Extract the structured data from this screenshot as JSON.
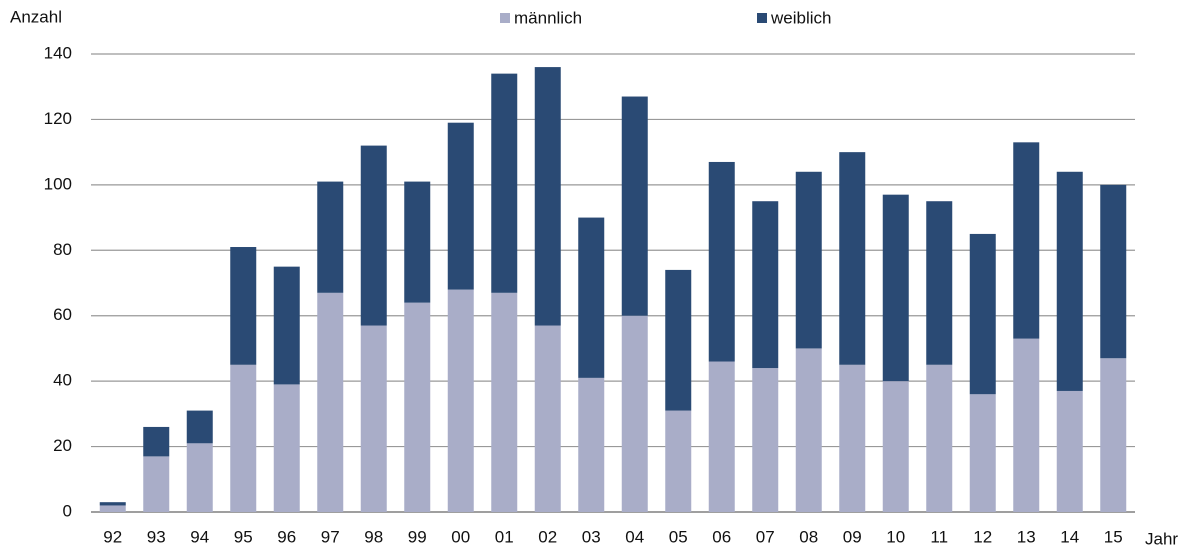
{
  "chart_data": {
    "type": "stacked_bar",
    "y_label": "Anzahl",
    "x_label": "Jahr",
    "categories": [
      "92",
      "93",
      "94",
      "95",
      "96",
      "97",
      "98",
      "99",
      "00",
      "01",
      "02",
      "03",
      "04",
      "05",
      "06",
      "07",
      "08",
      "09",
      "10",
      "11",
      "12",
      "13",
      "14",
      "15"
    ],
    "series": [
      {
        "name": "männlich",
        "color": "#a9adc8",
        "values": [
          2,
          17,
          21,
          45,
          39,
          67,
          57,
          64,
          68,
          67,
          57,
          41,
          60,
          31,
          46,
          44,
          50,
          45,
          40,
          45,
          36,
          53,
          37,
          47
        ]
      },
      {
        "name": "weiblich",
        "color": "#2a4a74",
        "values": [
          1,
          9,
          10,
          36,
          36,
          34,
          55,
          37,
          51,
          67,
          79,
          49,
          67,
          43,
          61,
          51,
          54,
          65,
          57,
          50,
          49,
          60,
          67,
          53
        ]
      }
    ],
    "ylim": [
      0,
      140
    ],
    "yticks": [
      0,
      20,
      40,
      60,
      80,
      100,
      120,
      140
    ],
    "grid": true,
    "legend": "top"
  }
}
